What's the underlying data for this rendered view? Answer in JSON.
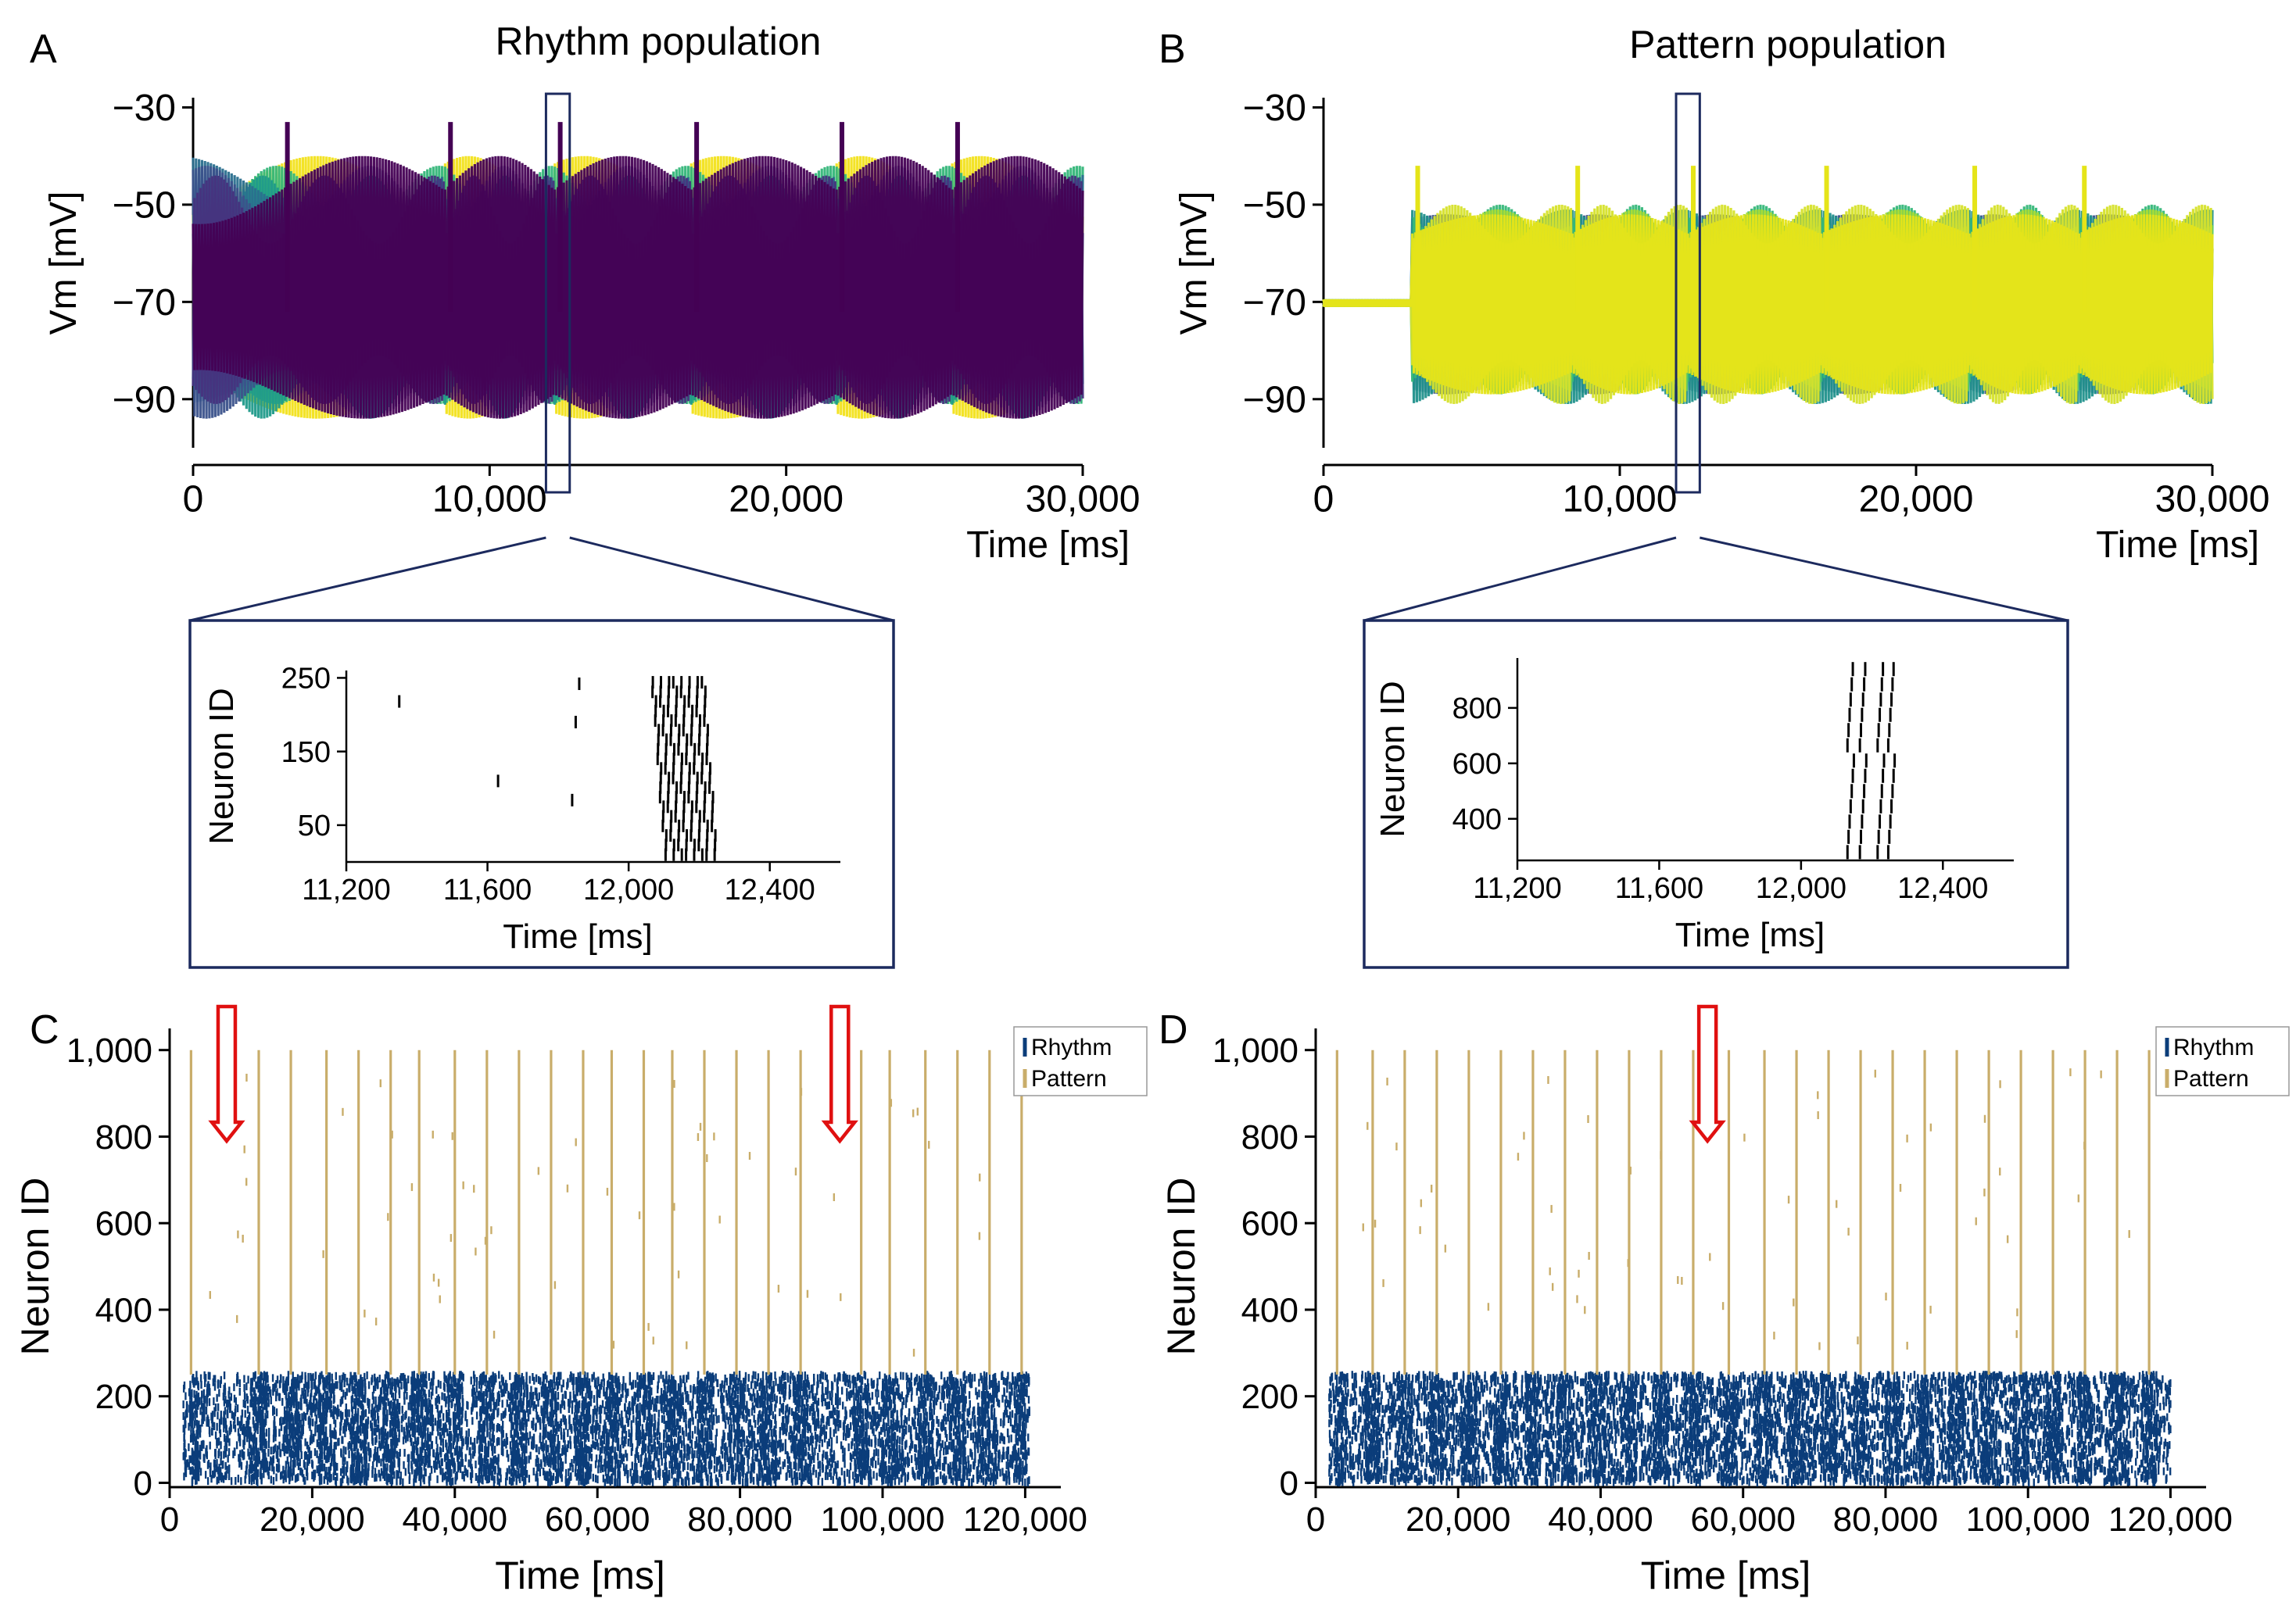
{
  "colors": {
    "rhythm": "#0b3d7a",
    "pattern": "#c9ad6a",
    "frame": "#1c2a5e",
    "arrow": "#e01010",
    "traces_rhythm": [
      "#f2e21b",
      "#34b679",
      "#1f9a8a",
      "#2a6f8e",
      "#3b528b",
      "#46337e",
      "#440154"
    ],
    "traces_pattern": [
      "#3b528b",
      "#21918c",
      "#35b779",
      "#5ec962",
      "#aadc32",
      "#d6e22b",
      "#e5e419"
    ]
  },
  "chart_data": [
    {
      "id": "A",
      "panel_letter": "A",
      "type": "line",
      "title": "Rhythm population",
      "xlabel": "Time [ms]",
      "ylabel": "Vm [mV]",
      "xlim": [
        0,
        30000
      ],
      "ylim": [
        -100,
        -28
      ],
      "xticks": [
        0,
        10000,
        20000,
        30000
      ],
      "xtick_labels": [
        "0",
        "10,000",
        "20,000",
        "30,000"
      ],
      "yticks": [
        -30,
        -50,
        -70,
        -90
      ],
      "ytick_labels": [
        "−30",
        "−50",
        "−70",
        "−90"
      ],
      "burst_onsets_ms": [
        3000,
        8500,
        12200,
        16800,
        21700,
        25600
      ],
      "zoom_window_ms": [
        11900,
        12700
      ]
    },
    {
      "id": "B",
      "panel_letter": "B",
      "type": "line",
      "title": "Pattern population",
      "xlabel": "Time [ms]",
      "ylabel": "Vm [mV]",
      "xlim": [
        0,
        30000
      ],
      "ylim": [
        -100,
        -28
      ],
      "xticks": [
        0,
        10000,
        20000,
        30000
      ],
      "xtick_labels": [
        "0",
        "10,000",
        "20,000",
        "30,000"
      ],
      "yticks": [
        -30,
        -50,
        -70,
        -90
      ],
      "ytick_labels": [
        "−30",
        "−50",
        "−70",
        "−90"
      ],
      "resting_potential_mV": -70,
      "activity_onset_ms": 3000,
      "burst_onsets_ms": [
        3000,
        8400,
        12300,
        16800,
        21800,
        25500
      ],
      "zoom_window_ms": [
        11900,
        12700
      ]
    },
    {
      "id": "A-inset",
      "type": "scatter",
      "xlabel": "Time [ms]",
      "ylabel": "Neuron ID",
      "xlim": [
        11200,
        12600
      ],
      "ylim": [
        0,
        260
      ],
      "xticks": [
        11200,
        11600,
        12000,
        12400
      ],
      "xtick_labels": [
        "11,200",
        "11,600",
        "12,000",
        "12,400"
      ],
      "yticks": [
        50,
        150,
        250
      ],
      "ytick_labels": [
        "50",
        "150",
        "250"
      ],
      "isolated_spikes": [
        [
          11350,
          218
        ],
        [
          11630,
          110
        ],
        [
          11840,
          84
        ],
        [
          11850,
          190
        ],
        [
          11860,
          242
        ]
      ],
      "burst_window_ms": [
        12050,
        12250
      ]
    },
    {
      "id": "B-inset",
      "type": "scatter",
      "xlabel": "Time [ms]",
      "ylabel": "Neuron ID",
      "xlim": [
        11200,
        12600
      ],
      "ylim": [
        250,
        980
      ],
      "xticks": [
        11200,
        11600,
        12000,
        12400
      ],
      "xtick_labels": [
        "11,200",
        "11,600",
        "12,000",
        "12,400"
      ],
      "yticks": [
        400,
        600,
        800
      ],
      "ytick_labels": [
        "400",
        "600",
        "800"
      ],
      "spike_times_ms": [
        12140,
        12175,
        12225,
        12255
      ],
      "id_range": [
        280,
        940
      ]
    },
    {
      "id": "C",
      "panel_letter": "C",
      "type": "scatter",
      "xlabel": "Time [ms]",
      "ylabel": "Neuron ID",
      "xlim": [
        0,
        125000
      ],
      "ylim": [
        -10,
        1050
      ],
      "xticks": [
        0,
        20000,
        40000,
        60000,
        80000,
        100000,
        120000
      ],
      "xtick_labels": [
        "0",
        "20,000",
        "40,000",
        "60,000",
        "80,000",
        "100,000",
        "120,000"
      ],
      "yticks": [
        0,
        200,
        400,
        600,
        800,
        1000
      ],
      "ytick_labels": [
        "0",
        "200",
        "400",
        "600",
        "800",
        "1,000"
      ],
      "legend": [
        "Rhythm",
        "Pattern"
      ],
      "legend_position": "top-right",
      "series": [
        {
          "name": "Rhythm",
          "id_range": [
            0,
            250
          ],
          "time_range_ms": [
            3000,
            120000
          ]
        },
        {
          "name": "Pattern",
          "id_range": [
            250,
            1000
          ],
          "burst_times_ms": [
            3000,
            12500,
            17000,
            22000,
            26500,
            31000,
            35000,
            40000,
            44500,
            49000,
            53500,
            58000,
            62000,
            66500,
            70500,
            75000,
            79500,
            84000,
            88500,
            97000,
            101000,
            106000,
            110500,
            115000,
            119500
          ]
        }
      ],
      "arrows_at_ms": [
        8000,
        94000
      ]
    },
    {
      "id": "D",
      "panel_letter": "D",
      "type": "scatter",
      "xlabel": "Time [ms]",
      "ylabel": "Neuron ID",
      "xlim": [
        0,
        125000
      ],
      "ylim": [
        -10,
        1050
      ],
      "xticks": [
        0,
        20000,
        40000,
        60000,
        80000,
        100000,
        120000
      ],
      "xtick_labels": [
        "0",
        "20,000",
        "40,000",
        "60,000",
        "80,000",
        "100,000",
        "120,000"
      ],
      "yticks": [
        0,
        200,
        400,
        600,
        800,
        1000
      ],
      "ytick_labels": [
        "0",
        "200",
        "400",
        "600",
        "800",
        "1,000"
      ],
      "legend": [
        "Rhythm",
        "Pattern"
      ],
      "legend_position": "top-right",
      "series": [
        {
          "name": "Rhythm",
          "id_range": [
            0,
            250
          ],
          "time_range_ms": [
            3000,
            120000
          ]
        },
        {
          "name": "Pattern",
          "id_range": [
            250,
            1000
          ],
          "burst_times_ms": [
            3000,
            8000,
            12500,
            17000,
            21500,
            26000,
            30500,
            35000,
            39500,
            44000,
            48500,
            53000,
            58000,
            63000,
            67500,
            72000,
            76500,
            81000,
            85500,
            90000,
            94500,
            99000,
            103500,
            108000,
            112500,
            117000
          ]
        }
      ],
      "arrows_at_ms": [
        55000
      ]
    }
  ]
}
